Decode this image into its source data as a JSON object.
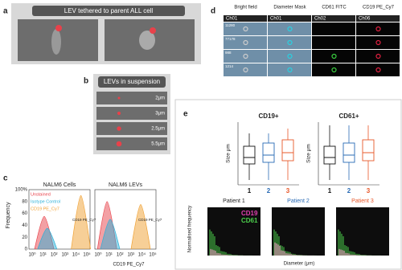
{
  "panel_a": {
    "label": "a",
    "title": "LEV tethered to parent ALL cell"
  },
  "panel_b": {
    "label": "b",
    "title": "LEVs in suspension",
    "sizes": [
      "2μm",
      "3μm",
      "2.5μm",
      "5.5μm"
    ]
  },
  "panel_c": {
    "label": "c",
    "plots": [
      "NALM6 Cells",
      "NALM6 LEVs"
    ],
    "legend": [
      "Unstained",
      "Isotype Control",
      "CD19 PE_Cy7"
    ],
    "y_label": "Frequency",
    "x_label": "CD19 PE_Cy7",
    "yticks": [
      "0",
      "20",
      "40",
      "60",
      "80",
      "100%"
    ],
    "xticks": [
      "10⁰",
      "10¹",
      "10²",
      "10³",
      "10⁴",
      "10⁵"
    ],
    "gate_label": "CD19 PE_Cy7"
  },
  "panel_d": {
    "label": "d",
    "columns": [
      {
        "name": "Bright field",
        "channel": "Ch01"
      },
      {
        "name": "Diameter Mask",
        "channel": "Ch01"
      },
      {
        "name": "CD61 FITC",
        "channel": "Ch02"
      },
      {
        "name": "CD19 PE_Cy7",
        "channel": "Ch06"
      }
    ],
    "rows": [
      "11280",
      "77178",
      "988",
      "1214"
    ]
  },
  "panel_e": {
    "label": "e",
    "box_titles": [
      "CD19+",
      "CD61+"
    ],
    "y_label": "Size μm",
    "groups": [
      "1",
      "2",
      "3"
    ],
    "patients": [
      "Patient 1",
      "Patient 2",
      "Patient 3"
    ],
    "legend": [
      "CD19",
      "CD61"
    ],
    "hist_y_label": "Normalised frequency",
    "hist_x_label": "Diameter (μm)"
  }
}
